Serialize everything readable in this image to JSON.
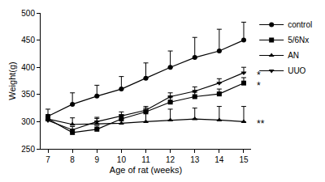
{
  "chart_data": {
    "type": "line",
    "x_label": "Age of rat (weeks)",
    "y_label": "Weight(g)",
    "x": [
      7,
      8,
      9,
      10,
      11,
      12,
      13,
      14,
      15
    ],
    "series": [
      {
        "name": "control",
        "color": "#000000",
        "marker": "circle",
        "values": [
          310,
          332,
          347,
          360,
          380,
          400,
          418,
          430,
          450
        ],
        "error": [
          13,
          21,
          20,
          23,
          28,
          30,
          37,
          40,
          33
        ]
      },
      {
        "name": "5/6Nx",
        "color": "#000000",
        "marker": "square",
        "values": [
          305,
          280,
          286,
          305,
          318,
          336,
          346,
          351,
          371
        ],
        "error": [
          6,
          6,
          6,
          8,
          7,
          8,
          8,
          9,
          10
        ]
      },
      {
        "name": "AN",
        "color": "#000000",
        "marker": "triangle-up",
        "values": [
          305,
          295,
          296,
          297,
          300,
          303,
          305,
          303,
          300
        ],
        "error": [
          8,
          12,
          12,
          14,
          18,
          20,
          20,
          25,
          28
        ]
      },
      {
        "name": "UUO",
        "color": "#000000",
        "marker": "triangle-down",
        "values": [
          302,
          285,
          300,
          311,
          321,
          346,
          356,
          371,
          390
        ],
        "error": [
          6,
          6,
          6,
          7,
          7,
          7,
          8,
          8,
          10
        ]
      }
    ],
    "annotations": [
      {
        "text": "*",
        "series": "UUO"
      },
      {
        "text": "*",
        "series": "5/6Nx"
      },
      {
        "text": "**",
        "series": "AN"
      }
    ],
    "xlim": [
      6.7,
      15.3
    ],
    "xticks": [
      7,
      8,
      9,
      10,
      11,
      12,
      13,
      14,
      15
    ],
    "ylim": [
      250,
      500
    ],
    "yticks": [
      250,
      300,
      350,
      400,
      450,
      500
    ],
    "grid": false,
    "legend": "upper right"
  }
}
